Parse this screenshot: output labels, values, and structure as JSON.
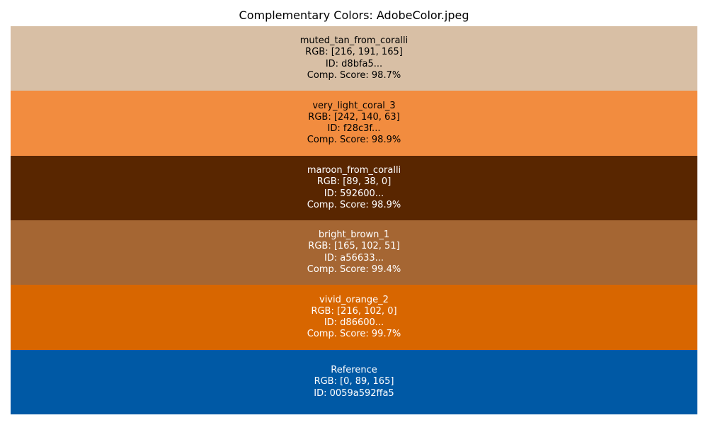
{
  "chart_data": {
    "type": "table",
    "title": "Complementary Colors: AdobeColor.jpeg",
    "swatches": [
      {
        "name": "muted_tan_from_coralli",
        "rgb_label": "RGB: [216, 191, 165]",
        "id_label": "ID: d8bfa5...",
        "score_label": "Comp. Score: 98.7%",
        "rgb": [
          216,
          191,
          165
        ],
        "score": 98.7,
        "color": "#d8bfa5",
        "text_color": "#000000"
      },
      {
        "name": "very_light_coral_3",
        "rgb_label": "RGB: [242, 140, 63]",
        "id_label": "ID: f28c3f...",
        "score_label": "Comp. Score: 98.9%",
        "rgb": [
          242,
          140,
          63
        ],
        "score": 98.9,
        "color": "#f28c3f",
        "text_color": "#000000"
      },
      {
        "name": "maroon_from_coralli",
        "rgb_label": "RGB: [89, 38, 0]",
        "id_label": "ID: 592600...",
        "score_label": "Comp. Score: 98.9%",
        "rgb": [
          89,
          38,
          0
        ],
        "score": 98.9,
        "color": "#592600",
        "text_color": "#ffffff"
      },
      {
        "name": "bright_brown_1",
        "rgb_label": "RGB: [165, 102, 51]",
        "id_label": "ID: a56633...",
        "score_label": "Comp. Score: 99.4%",
        "rgb": [
          165,
          102,
          51
        ],
        "score": 99.4,
        "color": "#a56633",
        "text_color": "#ffffff"
      },
      {
        "name": "vivid_orange_2",
        "rgb_label": "RGB: [216, 102, 0]",
        "id_label": "ID: d86600...",
        "score_label": "Comp. Score: 99.7%",
        "rgb": [
          216,
          102,
          0
        ],
        "score": 99.7,
        "color": "#d86600",
        "text_color": "#ffffff"
      },
      {
        "name": "Reference",
        "rgb_label": "RGB: [0, 89, 165]",
        "id_label": "ID: 0059a592ffa5",
        "score_label": "",
        "rgb": [
          0,
          89,
          165
        ],
        "color": "#0059a5",
        "text_color": "#ffffff"
      }
    ]
  }
}
